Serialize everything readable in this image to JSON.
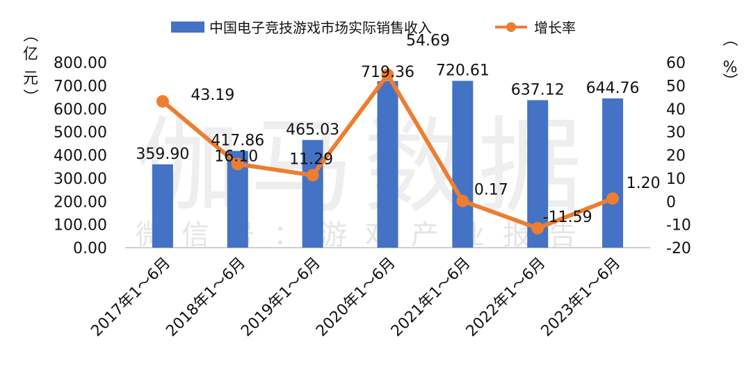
{
  "watermark": {
    "line1": "伽马数据",
    "line2": "微信号：游戏产业报告"
  },
  "legend": {
    "bar_label": "中国电子竞技游戏市场实际销售收入",
    "line_label": "增长率"
  },
  "colors": {
    "bar": "#4472C4",
    "line": "#ED7D31"
  },
  "chart_data": {
    "type": "bar+line",
    "categories": [
      "2017年1～6月",
      "2018年1～6月",
      "2019年1～6月",
      "2020年1～6月",
      "2021年1～6月",
      "2022年1～6月",
      "2023年1～6月"
    ],
    "series": [
      {
        "name": "中国电子竞技游戏市场实际销售收入",
        "type": "bar",
        "axis": "left",
        "values": [
          359.9,
          417.86,
          465.03,
          719.36,
          720.61,
          637.12,
          644.76
        ],
        "labels": [
          "359.90",
          "417.86",
          "465.03",
          "719.36",
          "720.61",
          "637.12",
          "644.76"
        ]
      },
      {
        "name": "增长率",
        "type": "line",
        "axis": "right",
        "values": [
          43.19,
          16.1,
          11.29,
          54.69,
          0.17,
          -11.59,
          1.2
        ],
        "labels": [
          "43.19",
          "16.10",
          "11.29",
          "54.69",
          "0.17",
          "-11.59",
          "1.20"
        ]
      }
    ],
    "left_axis": {
      "label_chars": [
        "（",
        "亿",
        "元",
        "）"
      ],
      "min": 0,
      "max": 800,
      "step": 100,
      "ticks": [
        "0.00",
        "100.00",
        "200.00",
        "300.00",
        "400.00",
        "500.00",
        "600.00",
        "700.00",
        "800.00"
      ]
    },
    "right_axis": {
      "label_chars": [
        "（",
        "%",
        "）"
      ],
      "min": -20,
      "max": 60,
      "step": 10,
      "ticks": [
        "-20",
        "-10",
        "0",
        "10",
        "20",
        "30",
        "40",
        "50",
        "60"
      ]
    },
    "grid": false,
    "legend_position": "top"
  }
}
